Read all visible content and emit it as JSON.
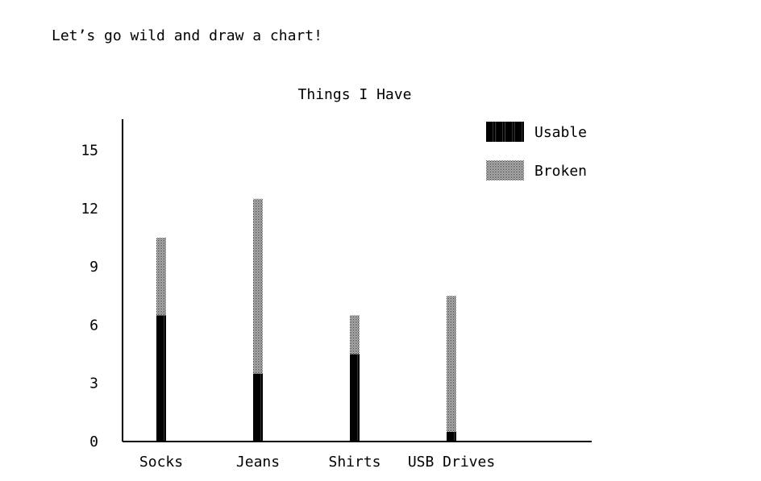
{
  "intro_text": "Let’s go wild and draw a chart!",
  "chart_data": {
    "type": "bar",
    "stacked": true,
    "title": "Things I Have",
    "xlabel": "",
    "ylabel": "",
    "categories": [
      "Socks",
      "Jeans",
      "Shirts",
      "USB Drives"
    ],
    "series": [
      {
        "name": "Usable",
        "values": [
          6.5,
          3.5,
          4.5,
          0.5
        ],
        "color": "#000000",
        "pattern": "solid"
      },
      {
        "name": "Broken",
        "values": [
          4,
          9,
          2,
          7
        ],
        "color": "#000000",
        "pattern": "dotted"
      }
    ],
    "yticks": [
      "0",
      "3",
      "6",
      "9",
      "12",
      "15"
    ],
    "ylim": [
      0,
      16.6
    ],
    "grid": false,
    "legend": "top-right"
  }
}
